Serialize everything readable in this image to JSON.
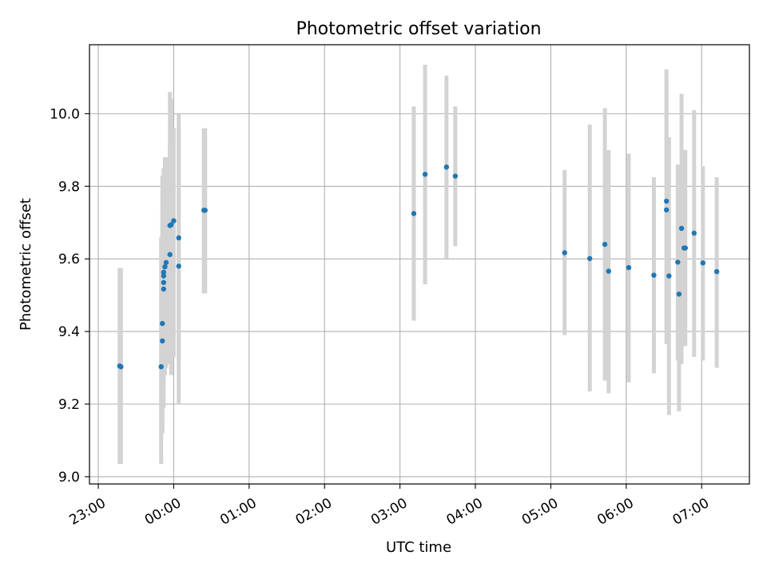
{
  "chart_data": {
    "type": "scatter",
    "title": "Photometric offset variation",
    "xlabel": "UTC time",
    "ylabel": "Photometric offset",
    "x_is_time": true,
    "xlim": [
      "22:53",
      "07:38"
    ],
    "ylim": [
      8.98,
      10.19
    ],
    "xticks": [
      "23:00",
      "00:00",
      "01:00",
      "02:00",
      "03:00",
      "04:00",
      "05:00",
      "06:00",
      "07:00"
    ],
    "yticks": [
      9.0,
      9.2,
      9.4,
      9.6,
      9.8,
      10.0
    ],
    "ytick_labels": [
      "9.0",
      "9.2",
      "9.4",
      "9.6",
      "9.8",
      "10.0"
    ],
    "grid": true,
    "marker_color": "#1f77b4",
    "errorbar_color": "#d3d3d3",
    "points": [
      {
        "x": "23:17",
        "y": 9.305,
        "ylow": 9.035,
        "yhigh": 9.575
      },
      {
        "x": "23:18",
        "y": 9.303,
        "ylow": 9.035,
        "yhigh": 9.575
      },
      {
        "x": "23:50",
        "y": 9.303,
        "ylow": 9.035,
        "yhigh": 9.66
      },
      {
        "x": "23:51",
        "y": 9.374,
        "ylow": 9.13,
        "yhigh": 9.74
      },
      {
        "x": "23:51",
        "y": 9.422,
        "ylow": 9.12,
        "yhigh": 9.83
      },
      {
        "x": "23:52",
        "y": 9.517,
        "ylow": 9.19,
        "yhigh": 9.84
      },
      {
        "x": "23:52",
        "y": 9.535,
        "ylow": 9.25,
        "yhigh": 9.82
      },
      {
        "x": "23:52",
        "y": 9.553,
        "ylow": 9.28,
        "yhigh": 9.83
      },
      {
        "x": "23:52",
        "y": 9.563,
        "ylow": 9.29,
        "yhigh": 9.85
      },
      {
        "x": "23:53",
        "y": 9.578,
        "ylow": 9.28,
        "yhigh": 9.88
      },
      {
        "x": "23:54",
        "y": 9.59,
        "ylow": 9.3,
        "yhigh": 9.88
      },
      {
        "x": "23:57",
        "y": 9.612,
        "ylow": 9.31,
        "yhigh": 9.92
      },
      {
        "x": "23:57",
        "y": 9.692,
        "ylow": 9.33,
        "yhigh": 10.06
      },
      {
        "x": "23:58",
        "y": 9.694,
        "ylow": 9.28,
        "yhigh": 10.04
      },
      {
        "x": "00:00",
        "y": 9.705,
        "ylow": 9.33,
        "yhigh": 9.96
      },
      {
        "x": "00:04",
        "y": 9.658,
        "ylow": 9.2,
        "yhigh": 10.0
      },
      {
        "x": "00:04",
        "y": 9.58,
        "ylow": 9.32,
        "yhigh": 9.96
      },
      {
        "x": "00:24",
        "y": 9.734,
        "ylow": 9.505,
        "yhigh": 9.96
      },
      {
        "x": "00:25",
        "y": 9.734,
        "ylow": 9.505,
        "yhigh": 9.96
      },
      {
        "x": "03:11",
        "y": 9.725,
        "ylow": 9.43,
        "yhigh": 10.02
      },
      {
        "x": "03:20",
        "y": 9.833,
        "ylow": 9.53,
        "yhigh": 10.135
      },
      {
        "x": "03:37",
        "y": 9.853,
        "ylow": 9.6,
        "yhigh": 10.105
      },
      {
        "x": "03:44",
        "y": 9.828,
        "ylow": 9.635,
        "yhigh": 10.02
      },
      {
        "x": "05:11",
        "y": 9.617,
        "ylow": 9.39,
        "yhigh": 9.845
      },
      {
        "x": "05:31",
        "y": 9.601,
        "ylow": 9.235,
        "yhigh": 9.97
      },
      {
        "x": "05:43",
        "y": 9.64,
        "ylow": 9.265,
        "yhigh": 10.015
      },
      {
        "x": "05:46",
        "y": 9.566,
        "ylow": 9.23,
        "yhigh": 9.9
      },
      {
        "x": "06:02",
        "y": 9.576,
        "ylow": 9.26,
        "yhigh": 9.89
      },
      {
        "x": "06:22",
        "y": 9.555,
        "ylow": 9.285,
        "yhigh": 9.825
      },
      {
        "x": "06:32",
        "y": 9.735,
        "ylow": 9.365,
        "yhigh": 10.105
      },
      {
        "x": "06:32",
        "y": 9.759,
        "ylow": 9.395,
        "yhigh": 10.122
      },
      {
        "x": "06:34",
        "y": 9.553,
        "ylow": 9.17,
        "yhigh": 9.935
      },
      {
        "x": "06:41",
        "y": 9.591,
        "ylow": 9.32,
        "yhigh": 9.86
      },
      {
        "x": "06:42",
        "y": 9.503,
        "ylow": 9.18,
        "yhigh": 9.82
      },
      {
        "x": "06:44",
        "y": 9.684,
        "ylow": 9.31,
        "yhigh": 10.055
      },
      {
        "x": "06:46",
        "y": 9.63,
        "ylow": 9.36,
        "yhigh": 9.9
      },
      {
        "x": "06:47",
        "y": 9.63,
        "ylow": 9.36,
        "yhigh": 9.9
      },
      {
        "x": "06:54",
        "y": 9.671,
        "ylow": 9.33,
        "yhigh": 10.01
      },
      {
        "x": "07:01",
        "y": 9.589,
        "ylow": 9.32,
        "yhigh": 9.855
      },
      {
        "x": "07:12",
        "y": 9.565,
        "ylow": 9.3,
        "yhigh": 9.825
      }
    ]
  }
}
